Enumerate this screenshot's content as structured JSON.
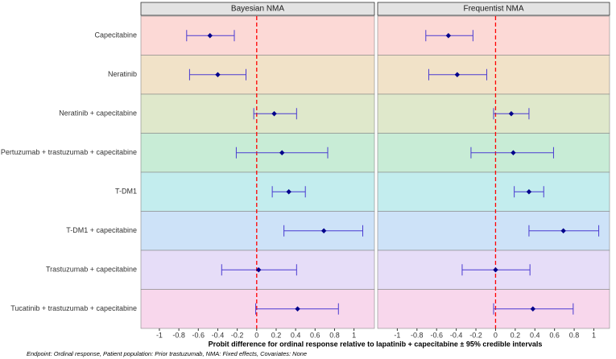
{
  "chart_data": {
    "type": "forest",
    "categories": [
      "Capecitabine",
      "Neratinib",
      "Neratinib + capecitabine",
      "Pertuzumab + trastuzumab + capecitabine",
      "T-DM1",
      "T-DM1 + capecitabine",
      "Trastuzumab + capecitabine",
      "Tucatinib + trastuzumab + capecitabine"
    ],
    "band_colors": [
      "#fcd9d6",
      "#f1e2c8",
      "#dfe8cb",
      "#c8ecd6",
      "#c3edee",
      "#cde2f8",
      "#e6ddf8",
      "#f8d7ec"
    ],
    "point_color": "#00008b",
    "line_color": "#4a3bd1",
    "reference_line": 0,
    "reference_color": "#ff0000",
    "xlabel": "Probit difference for ordinal response relative to lapatinib + capecitabine ± 95% credible intervals",
    "note": "Endpoint: Ordinal response,  Patient population: Prior trastuzumab,  NMA: Fixed effects,  Covariates: None",
    "panels": [
      {
        "title": "Bayesian NMA",
        "values": [
          -0.48,
          -0.4,
          0.18,
          0.26,
          0.33,
          0.69,
          0.02,
          0.42
        ],
        "lower": [
          -0.72,
          -0.69,
          -0.03,
          -0.21,
          0.16,
          0.28,
          -0.36,
          -0.01
        ],
        "upper": [
          -0.23,
          -0.11,
          0.41,
          0.73,
          0.5,
          1.09,
          0.41,
          0.84
        ],
        "xlim": [
          -1.19,
          1.21
        ],
        "xticks": [
          -1,
          -0.8,
          -0.6,
          -0.4,
          -0.2,
          0,
          0.2,
          0.4,
          0.6,
          0.8,
          1
        ]
      },
      {
        "title": "Frequentist NMA",
        "values": [
          -0.48,
          -0.39,
          0.16,
          0.18,
          0.34,
          0.69,
          0.0,
          0.38
        ],
        "lower": [
          -0.71,
          -0.68,
          -0.02,
          -0.25,
          0.19,
          0.34,
          -0.34,
          -0.02
        ],
        "upper": [
          -0.23,
          -0.09,
          0.34,
          0.59,
          0.49,
          1.05,
          0.35,
          0.79
        ],
        "xlim": [
          -1.2,
          1.16
        ],
        "xticks": [
          -1,
          -0.8,
          -0.6,
          -0.4,
          -0.2,
          0,
          0.2,
          0.4,
          0.6,
          0.8,
          1
        ]
      }
    ]
  }
}
